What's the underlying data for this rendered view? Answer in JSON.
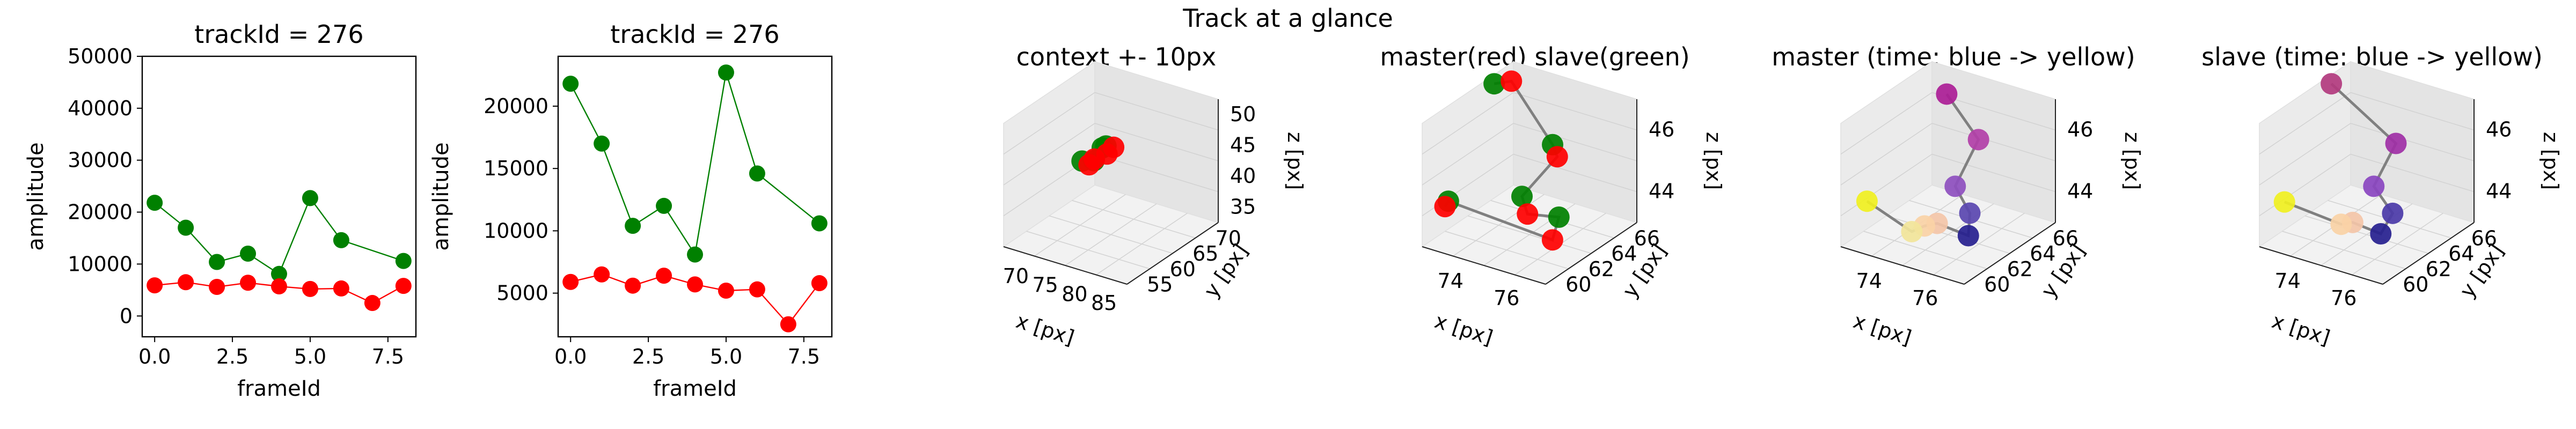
{
  "figure": {
    "suptitle": "Track at a glance"
  },
  "chart_data": [
    {
      "type": "line",
      "title": "trackId = 276",
      "xlabel": "frameId",
      "ylabel": "amplitude",
      "x": [
        0,
        1,
        2,
        3,
        4,
        5,
        6,
        7,
        8
      ],
      "xlim": [
        -0.4,
        8.4
      ],
      "ylim": [
        -4000,
        50000
      ],
      "xticks": [
        "0.0",
        "2.5",
        "5.0",
        "7.5"
      ],
      "xtick_values": [
        0,
        2.5,
        5,
        7.5
      ],
      "yticks": [
        "0",
        "10000",
        "20000",
        "30000",
        "40000",
        "50000"
      ],
      "ytick_values": [
        0,
        10000,
        20000,
        30000,
        40000,
        50000
      ],
      "series": [
        {
          "color": "#008000",
          "values": [
            21800,
            17000,
            10400,
            12000,
            8100,
            22700,
            14600,
            null,
            10600
          ]
        },
        {
          "color": "#ff0000",
          "values": [
            5900,
            6500,
            5600,
            6400,
            5700,
            5200,
            5300,
            2500,
            5800
          ]
        }
      ]
    },
    {
      "type": "line",
      "title": "trackId = 276",
      "xlabel": "frameId",
      "ylabel": "amplitude",
      "x": [
        0,
        1,
        2,
        3,
        4,
        5,
        6,
        7,
        8
      ],
      "xlim": [
        -0.4,
        8.4
      ],
      "ylim": [
        1500,
        24000
      ],
      "xticks": [
        "0.0",
        "2.5",
        "5.0",
        "7.5"
      ],
      "xtick_values": [
        0,
        2.5,
        5,
        7.5
      ],
      "yticks": [
        "5000",
        "10000",
        "15000",
        "20000"
      ],
      "ytick_values": [
        5000,
        10000,
        15000,
        20000
      ],
      "series": [
        {
          "color": "#008000",
          "values": [
            21800,
            17000,
            10400,
            12000,
            8100,
            22700,
            14600,
            null,
            10600
          ]
        },
        {
          "color": "#ff0000",
          "values": [
            5900,
            6500,
            5600,
            6400,
            5700,
            5200,
            5300,
            2500,
            5800
          ]
        }
      ]
    },
    {
      "type": "scatter3d",
      "title": "context +- 10px",
      "xlabel": "x [px]",
      "ylabel": "y [px]",
      "zlabel": "z [px]",
      "xticks": [
        "70",
        "75",
        "80",
        "85"
      ],
      "yticks": [
        "55",
        "60",
        "65",
        "70"
      ],
      "zticks": [
        "35",
        "40",
        "45",
        "50"
      ],
      "points": [
        {
          "color": "#008000",
          "x": 73.6,
          "y": 62.4,
          "z": 43.0
        },
        {
          "color": "#008000",
          "x": 75.2,
          "y": 64.0,
          "z": 44.5
        },
        {
          "color": "#008000",
          "x": 76.3,
          "y": 63.2,
          "z": 45.5
        },
        {
          "color": "#008000",
          "x": 75.9,
          "y": 61.5,
          "z": 44.2
        },
        {
          "color": "#ff0000",
          "x": 76.0,
          "y": 63.8,
          "z": 44.0
        },
        {
          "color": "#ff0000",
          "x": 75.6,
          "y": 61.0,
          "z": 43.8
        },
        {
          "color": "#ff0000",
          "x": 76.4,
          "y": 64.5,
          "z": 44.7
        },
        {
          "color": "#ff0000",
          "x": 75.0,
          "y": 62.8,
          "z": 43.5
        }
      ]
    },
    {
      "type": "scatter3d",
      "title": "master(red) slave(green)",
      "xlabel": "x [px]",
      "ylabel": "y [px]",
      "zlabel": "z [px]",
      "xticks": [
        "74",
        "76"
      ],
      "yticks": [
        "60",
        "62",
        "64",
        "66"
      ],
      "zticks": [
        "44",
        "46"
      ],
      "points": [
        {
          "color": "#008000",
          "x": 73.3,
          "y": 64.5,
          "z": 47.5
        },
        {
          "color": "#ff0000",
          "x": 73.6,
          "y": 65.2,
          "z": 47.0
        },
        {
          "color": "#008000",
          "x": 75.6,
          "y": 63.4,
          "z": 46.0
        },
        {
          "color": "#ff0000",
          "x": 75.9,
          "y": 63.0,
          "z": 45.8
        },
        {
          "color": "#008000",
          "x": 75.2,
          "y": 61.8,
          "z": 44.6
        },
        {
          "color": "#ff0000",
          "x": 75.6,
          "y": 61.2,
          "z": 44.3
        },
        {
          "color": "#008000",
          "x": 76.1,
          "y": 62.6,
          "z": 44.0
        },
        {
          "color": "#ff0000",
          "x": 76.3,
          "y": 61.5,
          "z": 43.6
        },
        {
          "color": "#008000",
          "x": 72.4,
          "y": 61.3,
          "z": 43.9
        },
        {
          "color": "#ff0000",
          "x": 72.6,
          "y": 61.0,
          "z": 43.8
        }
      ]
    },
    {
      "type": "scatter3d",
      "title": "master (time: blue -> yellow)",
      "xlabel": "x [px]",
      "ylabel": "y [px]",
      "zlabel": "z [px]",
      "xticks": [
        "74",
        "76"
      ],
      "yticks": [
        "60",
        "62",
        "64",
        "66"
      ],
      "zticks": [
        "44",
        "46"
      ],
      "points": [
        {
          "color": "#ab1d96",
          "x": 74.4,
          "y": 64.5,
          "z": 47.6
        },
        {
          "color": "#b23fa8",
          "x": 75.8,
          "y": 63.5,
          "z": 46.2
        },
        {
          "color": "#8e4fbf",
          "x": 75.6,
          "y": 62.0,
          "z": 45.0
        },
        {
          "color": "#5a46b0",
          "x": 76.0,
          "y": 62.2,
          "z": 44.2
        },
        {
          "color": "#26208f",
          "x": 76.1,
          "y": 61.8,
          "z": 43.6
        },
        {
          "color": "#f4c6a8",
          "x": 75.2,
          "y": 61.5,
          "z": 43.8
        },
        {
          "color": "#fad2a6",
          "x": 74.9,
          "y": 61.2,
          "z": 43.7
        },
        {
          "color": "#f2e59a",
          "x": 74.6,
          "y": 60.9,
          "z": 43.5
        },
        {
          "color": "#f0f020",
          "x": 72.4,
          "y": 61.3,
          "z": 43.9
        }
      ]
    },
    {
      "type": "scatter3d",
      "title": "slave (time: blue -> yellow)",
      "xlabel": "x [px]",
      "ylabel": "y [px]",
      "zlabel": "z [px]",
      "xticks": [
        "74",
        "76"
      ],
      "yticks": [
        "60",
        "62",
        "64",
        "66"
      ],
      "zticks": [
        "44",
        "46"
      ],
      "points": [
        {
          "color": "#b23a7e",
          "x": 73.3,
          "y": 64.5,
          "z": 47.6
        },
        {
          "color": "#a02fa6",
          "x": 75.8,
          "y": 63.4,
          "z": 46.1
        },
        {
          "color": "#8a45c0",
          "x": 75.6,
          "y": 62.0,
          "z": 45.0
        },
        {
          "color": "#4b3aa8",
          "x": 76.1,
          "y": 62.3,
          "z": 44.2
        },
        {
          "color": "#26208f",
          "x": 75.9,
          "y": 61.8,
          "z": 43.6
        },
        {
          "color": "#f4c6a8",
          "x": 75.1,
          "y": 61.5,
          "z": 43.8
        },
        {
          "color": "#fad2a6",
          "x": 74.8,
          "y": 61.3,
          "z": 43.7
        },
        {
          "color": "#f0f020",
          "x": 72.4,
          "y": 61.2,
          "z": 43.9
        }
      ]
    }
  ]
}
